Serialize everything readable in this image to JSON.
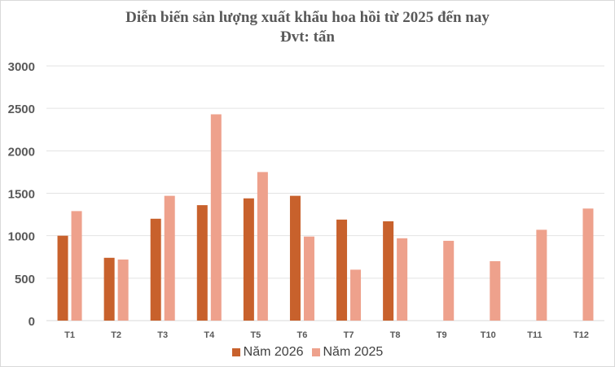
{
  "chart_data": {
    "type": "bar",
    "title": "Diễn biến sản lượng xuất khẩu hoa hồi từ 2025 đến nay",
    "subtitle": "Đvt: tấn",
    "categories": [
      "T1",
      "T2",
      "T3",
      "T4",
      "T5",
      "T6",
      "T7",
      "T8",
      "T9",
      "T10",
      "T11",
      "T12"
    ],
    "series": [
      {
        "name": "Năm 2026",
        "color": "#c8612c",
        "values": [
          1000,
          740,
          1200,
          1360,
          1440,
          1470,
          1190,
          1170,
          null,
          null,
          null,
          null
        ]
      },
      {
        "name": "Năm 2025",
        "color": "#eea18c",
        "values": [
          1290,
          720,
          1470,
          2430,
          1750,
          990,
          600,
          970,
          940,
          700,
          1070,
          1320
        ]
      }
    ],
    "yticks": [
      "0",
      "500",
      "1000",
      "1500",
      "2000",
      "2500",
      "3000"
    ],
    "ylim": [
      0,
      3000
    ],
    "grid": true,
    "legend_position": "bottom"
  }
}
